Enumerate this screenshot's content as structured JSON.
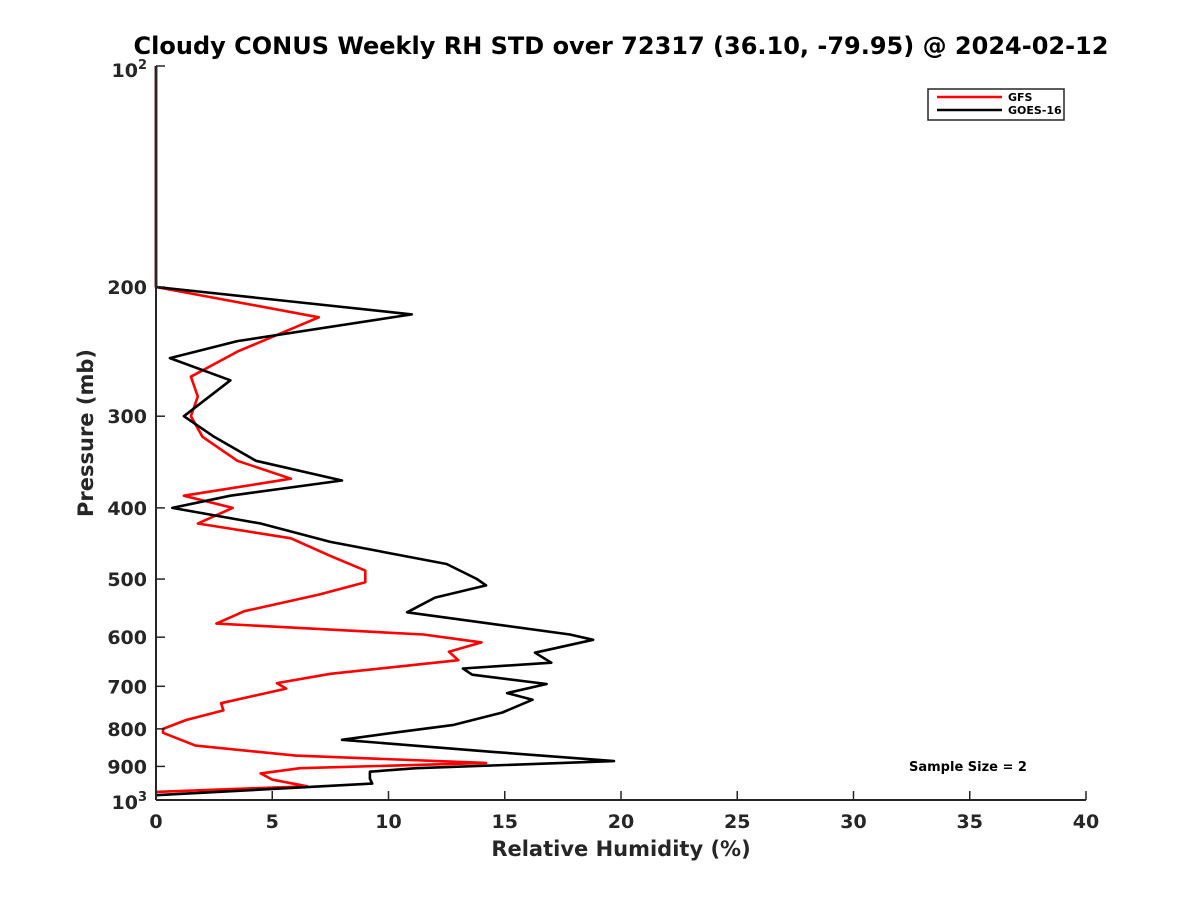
{
  "chart_data": {
    "type": "line",
    "title": "Cloudy CONUS Weekly RH STD over 72317 (36.10, -79.95) @ 2024-02-12",
    "xlabel": "Relative Humidity (%)",
    "ylabel": "Pressure (mb)",
    "xlim": [
      0,
      40
    ],
    "ylim": [
      100,
      1000
    ],
    "y_scale": "log",
    "y_reversed": true,
    "xticks": [
      0,
      5,
      10,
      15,
      20,
      25,
      30,
      35,
      40
    ],
    "xtick_labels": [
      "0",
      "5",
      "10",
      "15",
      "20",
      "25",
      "30",
      "35",
      "40"
    ],
    "yticks": [
      200,
      300,
      400,
      500,
      600,
      700,
      800,
      900
    ],
    "ytick_labels": [
      "200",
      "300",
      "400",
      "500",
      "600",
      "700",
      "800",
      "900"
    ],
    "ylim_labels": {
      "top_base": "10",
      "top_exp": "2",
      "bottom_base": "10",
      "bottom_exp": "3"
    },
    "grid": false,
    "legend_position": "top-right",
    "series": [
      {
        "name": "GFS",
        "color": "#ff0000",
        "points": [
          [
            0,
            100
          ],
          [
            0,
            150
          ],
          [
            0,
            200
          ],
          [
            7.0,
            220
          ],
          [
            3.5,
            245
          ],
          [
            1.5,
            265
          ],
          [
            1.8,
            282
          ],
          [
            1.5,
            300
          ],
          [
            2.0,
            320
          ],
          [
            3.5,
            345
          ],
          [
            5.8,
            365
          ],
          [
            1.2,
            385
          ],
          [
            3.3,
            400
          ],
          [
            1.8,
            420
          ],
          [
            5.8,
            440
          ],
          [
            7.5,
            465
          ],
          [
            9.0,
            487
          ],
          [
            9.0,
            505
          ],
          [
            7.0,
            525
          ],
          [
            3.8,
            553
          ],
          [
            2.6,
            575
          ],
          [
            11.5,
            595
          ],
          [
            14.0,
            610
          ],
          [
            12.6,
            628
          ],
          [
            13.0,
            645
          ],
          [
            7.5,
            673
          ],
          [
            5.2,
            693
          ],
          [
            5.6,
            705
          ],
          [
            2.8,
            738
          ],
          [
            2.9,
            755
          ],
          [
            1.3,
            778
          ],
          [
            0.3,
            800
          ],
          [
            0.3,
            810
          ],
          [
            1.7,
            843
          ],
          [
            6.0,
            870
          ],
          [
            14.2,
            890
          ],
          [
            6.2,
            905
          ],
          [
            4.5,
            920
          ],
          [
            5.0,
            938
          ],
          [
            6.5,
            958
          ],
          [
            0,
            975
          ]
        ]
      },
      {
        "name": "GOES-16",
        "color": "#000000",
        "points": [
          [
            0,
            100
          ],
          [
            0,
            150
          ],
          [
            0,
            200
          ],
          [
            11.0,
            218
          ],
          [
            3.5,
            237
          ],
          [
            0.6,
            250
          ],
          [
            3.2,
            268
          ],
          [
            1.2,
            300
          ],
          [
            2.5,
            320
          ],
          [
            4.3,
            345
          ],
          [
            8.0,
            367
          ],
          [
            3.2,
            385
          ],
          [
            0.7,
            400
          ],
          [
            4.5,
            420
          ],
          [
            7.5,
            445
          ],
          [
            12.5,
            477
          ],
          [
            13.8,
            500
          ],
          [
            14.2,
            510
          ],
          [
            12.0,
            530
          ],
          [
            10.8,
            555
          ],
          [
            17.8,
            595
          ],
          [
            18.8,
            605
          ],
          [
            16.3,
            630
          ],
          [
            17.0,
            650
          ],
          [
            13.2,
            662
          ],
          [
            13.6,
            675
          ],
          [
            16.8,
            695
          ],
          [
            15.1,
            715
          ],
          [
            16.2,
            730
          ],
          [
            14.9,
            760
          ],
          [
            12.8,
            790
          ],
          [
            10.2,
            810
          ],
          [
            8.0,
            828
          ],
          [
            14.5,
            860
          ],
          [
            19.7,
            885
          ],
          [
            11.2,
            905
          ],
          [
            9.2,
            915
          ],
          [
            9.2,
            935
          ],
          [
            9.3,
            950
          ],
          [
            0,
            985
          ]
        ]
      }
    ],
    "annotation": "Sample Size = 2"
  }
}
